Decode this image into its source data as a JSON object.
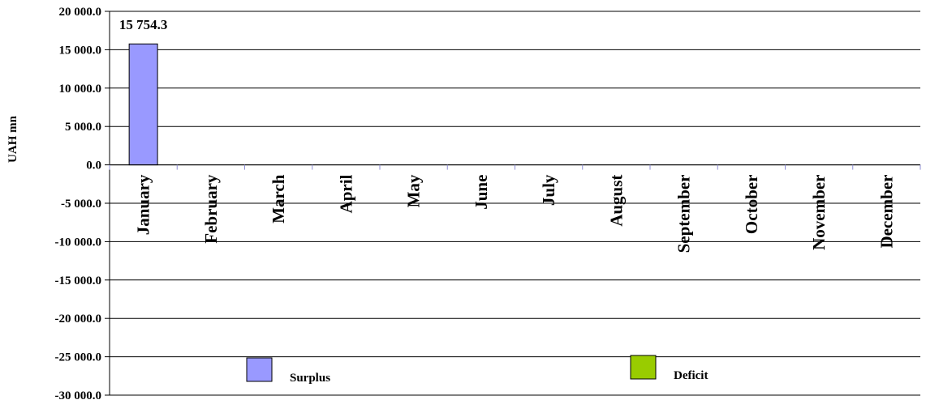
{
  "chart_data": {
    "type": "bar",
    "categories": [
      "January",
      "February",
      "March",
      "April",
      "May",
      "June",
      "July",
      "August",
      "September",
      "October",
      "November",
      "December"
    ],
    "series": [
      {
        "name": "Surplus",
        "color": "#9999ff",
        "values": [
          15754.3,
          null,
          null,
          null,
          null,
          null,
          null,
          null,
          null,
          null,
          null,
          null
        ]
      },
      {
        "name": "Deficit",
        "color": "#99cc00",
        "values": [
          null,
          null,
          null,
          null,
          null,
          null,
          null,
          null,
          null,
          null,
          null,
          null
        ]
      }
    ],
    "data_labels": [
      "15 754.3"
    ],
    "ylabel": "UAH mn",
    "ylim": [
      -30000,
      20000
    ],
    "yticks": [
      20000,
      15000,
      10000,
      5000,
      0,
      -5000,
      -10000,
      -15000,
      -20000,
      -25000,
      -30000
    ],
    "ytick_labels": [
      "20 000.0",
      "15 000.0",
      "10 000.0",
      "5 000.0",
      "0.0",
      "-5 000.0",
      "-10 000.0",
      "-15 000.0",
      "-20 000.0",
      "-25 000.0",
      "-30 000.0"
    ],
    "grid": true,
    "legend_position": "bottom"
  }
}
